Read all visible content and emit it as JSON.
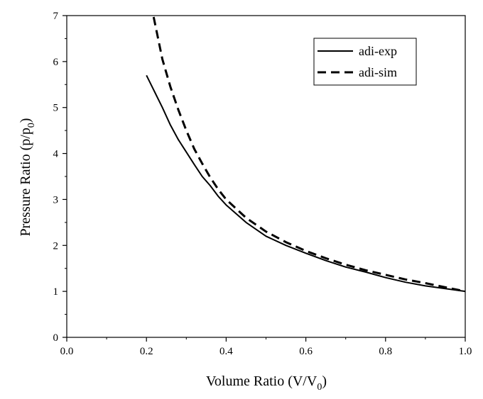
{
  "chart_data": {
    "type": "line",
    "xlabel": {
      "main": "Volume Ratio (V/V",
      "sub": "0",
      "close": ")"
    },
    "ylabel": {
      "main": "Pressure Ratio (p/p",
      "sub": "0",
      "close": ")"
    },
    "xlim": [
      0.0,
      1.0
    ],
    "ylim": [
      0,
      7
    ],
    "xticks": [
      "0.0",
      "0.2",
      "0.4",
      "0.6",
      "0.8",
      "1.0"
    ],
    "yticks": [
      "0",
      "1",
      "2",
      "3",
      "4",
      "5",
      "6",
      "7"
    ],
    "grid": false,
    "legend_position": "top-right",
    "series": [
      {
        "name": "adi-exp",
        "style": "solid",
        "color": "#000000",
        "x": [
          0.2,
          0.22,
          0.24,
          0.26,
          0.28,
          0.3,
          0.32,
          0.34,
          0.36,
          0.38,
          0.4,
          0.45,
          0.5,
          0.55,
          0.6,
          0.65,
          0.7,
          0.75,
          0.8,
          0.85,
          0.9,
          0.95,
          1.0
        ],
        "y": [
          5.7,
          5.35,
          5.0,
          4.62,
          4.3,
          4.03,
          3.76,
          3.5,
          3.3,
          3.07,
          2.88,
          2.5,
          2.2,
          2.0,
          1.83,
          1.67,
          1.53,
          1.42,
          1.3,
          1.2,
          1.12,
          1.06,
          1.0
        ]
      },
      {
        "name": "adi-sim",
        "style": "dashed",
        "color": "#000000",
        "x": [
          0.218,
          0.24,
          0.26,
          0.28,
          0.3,
          0.32,
          0.34,
          0.36,
          0.38,
          0.4,
          0.45,
          0.5,
          0.55,
          0.6,
          0.65,
          0.7,
          0.75,
          0.8,
          0.85,
          0.9,
          0.95,
          1.0
        ],
        "y": [
          6.97,
          6.05,
          5.45,
          4.95,
          4.5,
          4.1,
          3.78,
          3.48,
          3.22,
          3.0,
          2.6,
          2.3,
          2.07,
          1.88,
          1.72,
          1.58,
          1.46,
          1.36,
          1.26,
          1.18,
          1.09,
          1.0
        ]
      }
    ]
  }
}
